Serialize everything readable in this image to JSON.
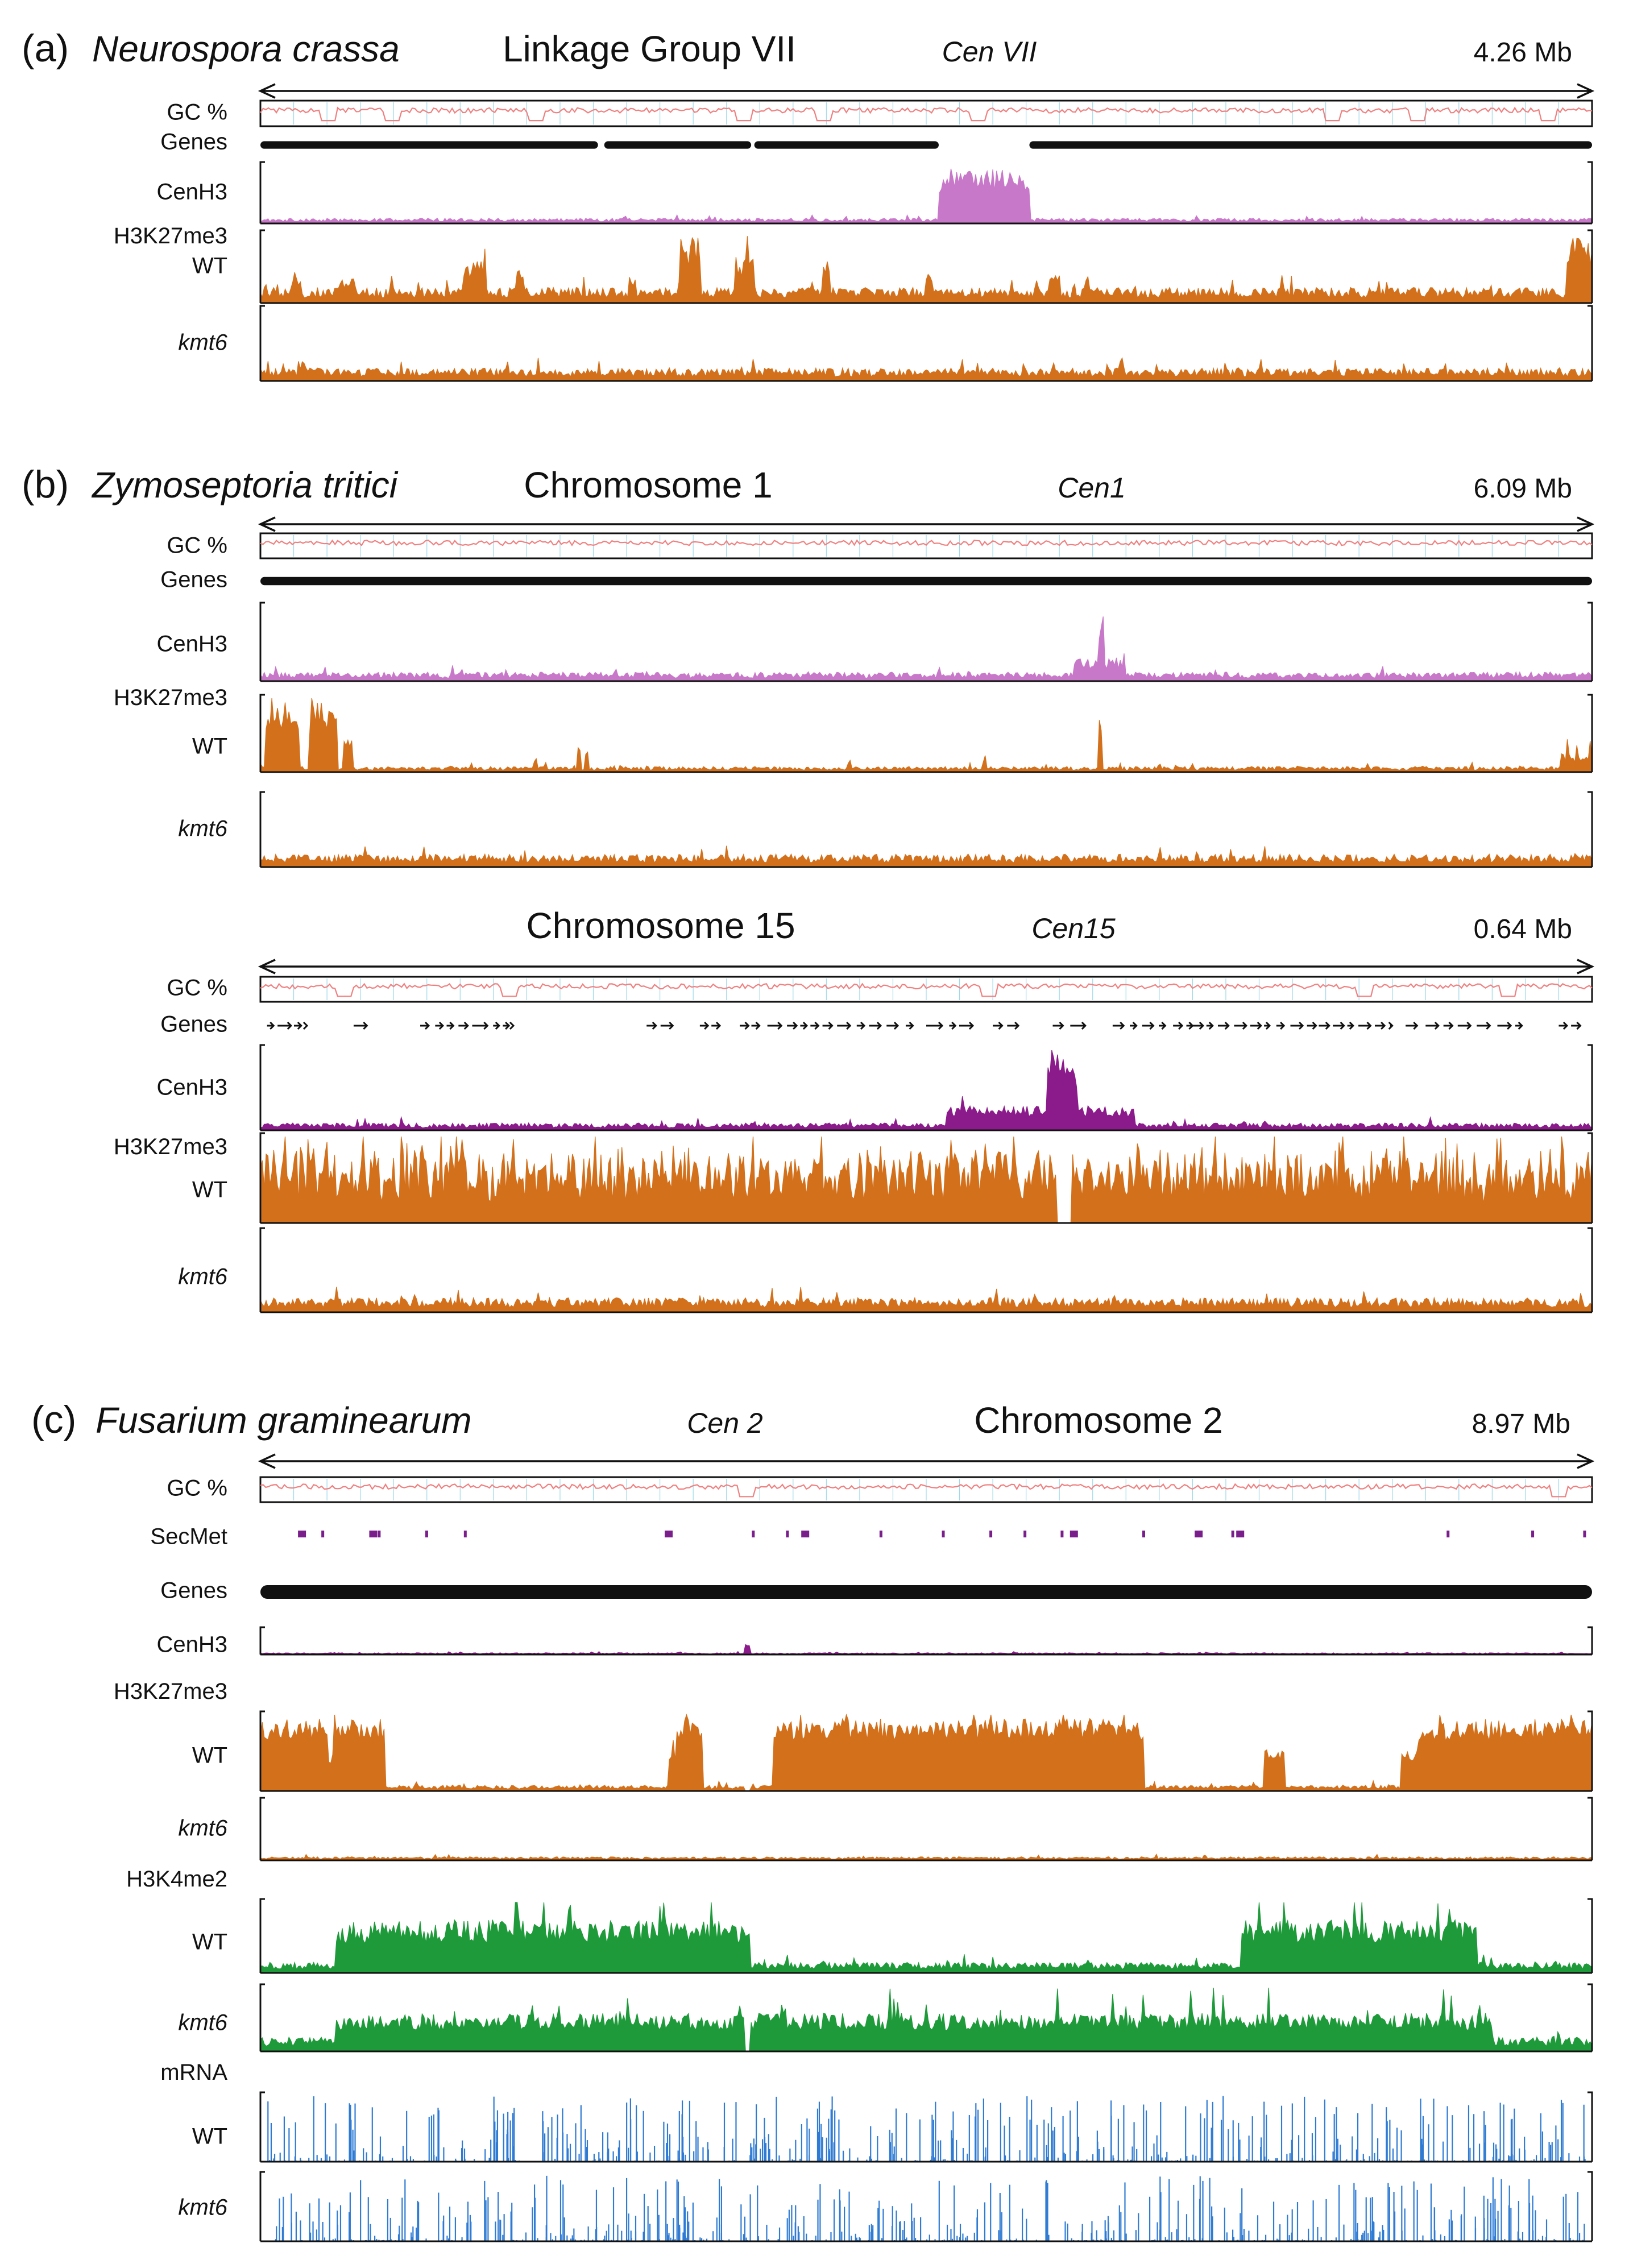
{
  "colors": {
    "cenh3": "#8B1A8B",
    "cenh3_light": "#C878C8",
    "k27": "#D2701C",
    "k4": "#1E9A3A",
    "mrna": "#2F7BD3",
    "gc_line": "#F08080",
    "gc_grid": "#9ED8E8",
    "genes": "#111111",
    "secmet": "#7A1E8C"
  },
  "chart_data": [
    {
      "type": "genome_browser_tracks",
      "panel": "(a)",
      "species": "Neurospora crassa",
      "title": "Linkage Group VII",
      "centromere": "Cen VII",
      "length_label": "4.26 Mb",
      "length_mb": 4.26,
      "centromere_mb": [
        2.17,
        2.46
      ],
      "tracks": [
        {
          "label": "GC %",
          "kind": "gc",
          "dips_mb": [
            0.22,
            0.42,
            0.88,
            1.55,
            1.8,
            2.3,
            3.43,
            3.7,
            4.12
          ]
        },
        {
          "label": "Genes",
          "kind": "genes_dense",
          "gaps_mb": [
            [
              2.17,
              2.46
            ],
            [
              1.08,
              1.1
            ],
            [
              1.57,
              1.58
            ]
          ]
        },
        {
          "label": "CenH3",
          "kind": "signal",
          "color": "cenh3_light",
          "base": 0.06,
          "peaks": [
            {
              "start_mb": 2.17,
              "end_mb": 2.46,
              "height": 0.95
            }
          ]
        },
        {
          "label1": "H3K27me3",
          "label": "WT",
          "kind": "signal",
          "color": "k27",
          "base": 0.15,
          "peaks": [
            {
              "start_mb": 0.1,
              "end_mb": 0.13,
              "height": 0.45
            },
            {
              "start_mb": 0.25,
              "end_mb": 0.3,
              "height": 0.38
            },
            {
              "start_mb": 0.65,
              "end_mb": 0.72,
              "height": 0.6
            },
            {
              "start_mb": 0.82,
              "end_mb": 0.84,
              "height": 0.5
            },
            {
              "start_mb": 1.18,
              "end_mb": 1.2,
              "height": 0.45
            },
            {
              "start_mb": 1.34,
              "end_mb": 1.41,
              "height": 0.95
            },
            {
              "start_mb": 1.52,
              "end_mb": 1.58,
              "height": 0.7
            },
            {
              "start_mb": 1.8,
              "end_mb": 1.82,
              "height": 0.6
            },
            {
              "start_mb": 2.13,
              "end_mb": 2.15,
              "height": 0.5
            },
            {
              "start_mb": 2.52,
              "end_mb": 2.56,
              "height": 0.4
            },
            {
              "start_mb": 3.6,
              "end_mb": 3.62,
              "height": 0.3
            },
            {
              "start_mb": 4.18,
              "end_mb": 4.26,
              "height": 0.95
            }
          ]
        },
        {
          "label": "kmt6",
          "italic": true,
          "kind": "signal",
          "color": "k27",
          "base": 0.12,
          "peaks": [
            {
              "start_mb": 0.12,
              "end_mb": 0.14,
              "height": 0.3
            }
          ]
        }
      ]
    },
    {
      "type": "genome_browser_tracks",
      "panel": "(b)",
      "species": "Zymoseptoria tritici",
      "title": "Chromosome 1",
      "centromere": "Cen1",
      "length_label": "6.09 Mb",
      "length_mb": 6.09,
      "centromere_mb": [
        3.82,
        3.87
      ],
      "tracks": [
        {
          "label": "GC %",
          "kind": "gc",
          "dips_mb": []
        },
        {
          "label": "Genes",
          "kind": "genes_dense",
          "gaps_mb": []
        },
        {
          "label": "CenH3",
          "kind": "signal",
          "color": "cenh3_light",
          "base": 0.08,
          "peaks": [
            {
              "start_mb": 3.83,
              "end_mb": 3.86,
              "height": 0.95
            },
            {
              "start_mb": 3.72,
              "end_mb": 3.95,
              "height": 0.3
            }
          ]
        },
        {
          "label1": "H3K27me3",
          "label": "WT",
          "kind": "signal",
          "color": "k27",
          "base": 0.05,
          "peaks": [
            {
              "start_mb": 0.02,
              "end_mb": 0.18,
              "height": 0.95
            },
            {
              "start_mb": 0.22,
              "end_mb": 0.35,
              "height": 0.95
            },
            {
              "start_mb": 0.38,
              "end_mb": 0.42,
              "height": 0.45
            },
            {
              "start_mb": 1.25,
              "end_mb": 1.27,
              "height": 0.2
            },
            {
              "start_mb": 1.45,
              "end_mb": 1.47,
              "height": 0.45
            },
            {
              "start_mb": 1.48,
              "end_mb": 1.5,
              "height": 0.3
            },
            {
              "start_mb": 2.68,
              "end_mb": 2.7,
              "height": 0.2
            },
            {
              "start_mb": 3.3,
              "end_mb": 3.32,
              "height": 0.25
            },
            {
              "start_mb": 3.83,
              "end_mb": 3.85,
              "height": 0.95
            },
            {
              "start_mb": 4.1,
              "end_mb": 4.12,
              "height": 0.15
            },
            {
              "start_mb": 5.95,
              "end_mb": 6.09,
              "height": 0.25
            }
          ]
        },
        {
          "label": "kmt6",
          "italic": true,
          "kind": "signal",
          "color": "k27",
          "base": 0.12,
          "peaks": []
        }
      ]
    },
    {
      "type": "genome_browser_tracks",
      "panel": "",
      "species": "",
      "title": "Chromosome 15",
      "centromere": "Cen15",
      "length_label": "0.64 Mb",
      "length_mb": 0.64,
      "centromere_mb": [
        0.38,
        0.392
      ],
      "tracks": [
        {
          "label": "GC %",
          "kind": "gc",
          "dips_mb": [
            0.04,
            0.12,
            0.35,
            0.53,
            0.6
          ]
        },
        {
          "label": "Genes",
          "kind": "genes_sparse",
          "gaps_mb": []
        },
        {
          "label": "CenH3",
          "kind": "signal",
          "color": "cenh3",
          "base": 0.06,
          "peaks": [
            {
              "start_mb": 0.378,
              "end_mb": 0.393,
              "height": 0.95
            },
            {
              "start_mb": 0.33,
              "end_mb": 0.42,
              "height": 0.3
            }
          ]
        },
        {
          "label1": "H3K27me3",
          "label": "WT",
          "kind": "signal",
          "color": "k27",
          "base": 0.55,
          "peaks": [],
          "gaps_mb": [
            [
              0.383,
              0.39
            ]
          ]
        },
        {
          "label": "kmt6",
          "italic": true,
          "kind": "signal",
          "color": "k27",
          "base": 0.12,
          "peaks": []
        }
      ]
    },
    {
      "type": "genome_browser_tracks",
      "panel": "(c)",
      "species": "Fusarium graminearum",
      "title": "Chromosome 2",
      "centromere": "Cen 2",
      "length_label": "8.97 Mb",
      "length_mb": 8.97,
      "centromere_mb": [
        3.25,
        3.33
      ],
      "tracks": [
        {
          "label": "GC %",
          "kind": "gc",
          "dips_mb": [
            3.27,
            8.75
          ]
        },
        {
          "label": "SecMet",
          "kind": "secmet",
          "positions_mb": [
            0.28,
            0.42,
            0.76,
            0.8,
            1.12,
            1.38,
            2.75,
            3.32,
            3.55,
            3.67,
            4.18,
            4.6,
            4.92,
            5.15,
            5.4,
            5.48,
            5.95,
            6.32,
            6.55,
            6.6,
            8.0,
            8.57,
            8.92
          ],
          "wide_mb": [
            0.28,
            0.76,
            2.75,
            3.67,
            5.48,
            6.32,
            6.6
          ]
        },
        {
          "label": "Genes",
          "kind": "genes_dense",
          "gaps_mb": []
        },
        {
          "label": "CenH3",
          "kind": "signal",
          "color": "cenh3",
          "base": 0.05,
          "peaks": [
            {
              "start_mb": 3.26,
              "end_mb": 3.3,
              "height": 0.45
            }
          ]
        },
        {
          "label1": "H3K27me3",
          "label": "WT",
          "kind": "signal",
          "color": "k27",
          "base": 0.05,
          "regions": [
            [
              0.0,
              0.46,
              0.95
            ],
            [
              0.46,
              0.49,
              0.5
            ],
            [
              0.49,
              0.84,
              0.95
            ],
            [
              2.75,
              2.8,
              0.45
            ],
            [
              2.8,
              2.98,
              0.95
            ],
            [
              3.45,
              5.8,
              0.95
            ],
            [
              5.8,
              5.95,
              0.9
            ],
            [
              6.76,
              6.9,
              0.55
            ],
            [
              7.68,
              7.8,
              0.55
            ],
            [
              7.8,
              8.0,
              0.9
            ],
            [
              8.0,
              8.97,
              0.95
            ]
          ],
          "gaps_mb": [
            [
              3.26,
              3.3
            ]
          ]
        },
        {
          "label": "kmt6",
          "italic": true,
          "kind": "signal",
          "color": "k27",
          "base": 0.04,
          "peaks": []
        },
        {
          "label1": "H3K4me2",
          "label": "WT",
          "kind": "signal",
          "color": "k4",
          "base": 0.1,
          "peaks": [
            {
              "start_mb": 0.5,
              "end_mb": 3.3,
              "height": 0.75
            },
            {
              "start_mb": 6.6,
              "end_mb": 8.2,
              "height": 0.75
            }
          ]
        },
        {
          "label": "kmt6",
          "italic": true,
          "kind": "signal",
          "color": "k4",
          "base": 0.15,
          "peaks": [
            {
              "start_mb": 0.5,
              "end_mb": 8.3,
              "height": 0.6
            }
          ],
          "gaps_mb": [
            [
              3.26,
              3.3
            ]
          ]
        },
        {
          "label1": "mRNA",
          "label": "WT",
          "kind": "spikes",
          "color": "mrna"
        },
        {
          "label": "kmt6",
          "italic": true,
          "kind": "spikes",
          "color": "mrna"
        }
      ]
    }
  ]
}
